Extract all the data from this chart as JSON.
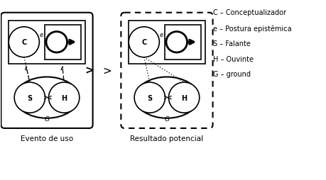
{
  "legend": [
    "C – Conceptualizador",
    "e – Postura epistêmica",
    "S – Falante",
    "H – Ouvinte",
    "G – ground"
  ],
  "label_evento": "Evento de uso",
  "label_resultado": "Resultado potencial",
  "symbol_greater": ">",
  "bg_color": "#ffffff",
  "fg_color": "#000000"
}
